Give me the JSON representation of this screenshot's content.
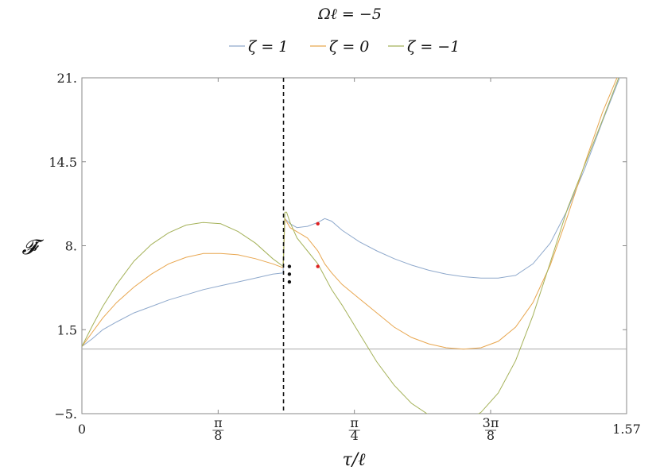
{
  "chart_data": {
    "type": "line",
    "title": "Ωℓ = −5",
    "xlabel": "τ/ℓ",
    "ylabel": "𝓕̇",
    "xlim": [
      0,
      1.57
    ],
    "ylim": [
      -5,
      21
    ],
    "xticks": [
      {
        "value": 0,
        "label": "0"
      },
      {
        "value": 0.3927,
        "label": "π/8",
        "num": "π",
        "den": "8"
      },
      {
        "value": 0.7854,
        "label": "π/4",
        "num": "π",
        "den": "4"
      },
      {
        "value": 1.1781,
        "label": "3π/8",
        "num": "3π",
        "den": "8"
      },
      {
        "value": 1.57,
        "label": "1.57"
      }
    ],
    "yticks": [
      {
        "value": -5,
        "label": "−5."
      },
      {
        "value": 1.5,
        "label": "1.5"
      },
      {
        "value": 8,
        "label": "8."
      },
      {
        "value": 14.5,
        "label": "14.5"
      },
      {
        "value": 21,
        "label": "21."
      }
    ],
    "legend_position": "top-center",
    "colors": {
      "zeta_1": "#8fa9cc",
      "zeta_0": "#e8a64f",
      "zeta_m1": "#a5b25a",
      "dashed": "#111111",
      "zero_line": "#aaaaaa",
      "marker_red": "#e02020",
      "marker_black": "#111111"
    },
    "vertical_line_x": 0.5811,
    "zero_line_y": 0,
    "series": [
      {
        "name": "ζ = 1",
        "color": "#8fa9cc",
        "segments": [
          {
            "x": [
              0,
              0.03,
              0.06,
              0.1,
              0.15,
              0.2,
              0.25,
              0.3,
              0.35,
              0.4,
              0.45,
              0.5,
              0.55,
              0.58
            ],
            "y": [
              0.2,
              0.8,
              1.5,
              2.1,
              2.8,
              3.3,
              3.8,
              4.2,
              4.6,
              4.9,
              5.2,
              5.5,
              5.8,
              5.9
            ]
          },
          {
            "x": [
              0.585,
              0.6,
              0.62,
              0.65,
              0.68,
              0.7,
              0.72,
              0.75,
              0.8,
              0.85,
              0.9,
              0.95,
              1.0,
              1.05,
              1.1,
              1.15,
              1.2,
              1.25,
              1.3,
              1.35,
              1.4,
              1.45,
              1.5,
              1.55,
              1.57
            ],
            "y": [
              10.1,
              9.7,
              9.4,
              9.5,
              9.8,
              10.1,
              9.9,
              9.2,
              8.3,
              7.6,
              7.0,
              6.5,
              6.1,
              5.8,
              5.6,
              5.5,
              5.5,
              5.7,
              6.6,
              8.2,
              10.8,
              14.0,
              17.6,
              21.0,
              21.5
            ]
          }
        ]
      },
      {
        "name": "ζ = 0",
        "color": "#e8a64f",
        "segments": [
          {
            "x": [
              0,
              0.03,
              0.06,
              0.1,
              0.15,
              0.2,
              0.25,
              0.3,
              0.35,
              0.4,
              0.45,
              0.5,
              0.55,
              0.58
            ],
            "y": [
              0.2,
              1.3,
              2.4,
              3.6,
              4.8,
              5.8,
              6.6,
              7.1,
              7.4,
              7.4,
              7.3,
              7.0,
              6.6,
              6.3
            ]
          },
          {
            "x": [
              0.585,
              0.6,
              0.65,
              0.68,
              0.7,
              0.72,
              0.75,
              0.8,
              0.85,
              0.9,
              0.95,
              1.0,
              1.05,
              1.1,
              1.15,
              1.2,
              1.25,
              1.3,
              1.35,
              1.4,
              1.45,
              1.5,
              1.55,
              1.57
            ],
            "y": [
              10.1,
              9.4,
              8.6,
              7.6,
              6.6,
              5.9,
              5.0,
              3.9,
              2.8,
              1.7,
              0.9,
              0.4,
              0.1,
              0.0,
              0.1,
              0.6,
              1.7,
              3.6,
              6.5,
              10.3,
              14.4,
              18.3,
              21.5,
              22.0
            ]
          }
        ]
      },
      {
        "name": "ζ = −1",
        "color": "#a5b25a",
        "segments": [
          {
            "x": [
              0,
              0.03,
              0.06,
              0.1,
              0.15,
              0.2,
              0.25,
              0.3,
              0.35,
              0.4,
              0.45,
              0.5,
              0.55,
              0.58
            ],
            "y": [
              0.2,
              1.8,
              3.3,
              5.0,
              6.8,
              8.1,
              9.0,
              9.6,
              9.8,
              9.7,
              9.1,
              8.2,
              7.0,
              6.4
            ]
          },
          {
            "x": [
              0.585,
              0.59,
              0.6,
              0.62,
              0.65,
              0.68,
              0.7,
              0.72,
              0.75,
              0.8,
              0.85,
              0.9,
              0.95,
              1.0,
              1.05,
              1.1,
              1.15,
              1.2,
              1.25,
              1.3,
              1.35,
              1.4,
              1.45,
              1.5,
              1.55,
              1.57
            ],
            "y": [
              10.6,
              10.6,
              9.8,
              8.6,
              7.6,
              6.6,
              5.6,
              4.6,
              3.4,
              1.2,
              -1.0,
              -2.8,
              -4.2,
              -5.1,
              -5.6,
              -5.6,
              -4.9,
              -3.4,
              -0.9,
              2.6,
              6.7,
              10.9,
              14.3,
              17.7,
              21.2,
              22.0
            ]
          }
        ]
      }
    ],
    "markers": [
      {
        "x": 0.598,
        "y": 5.2,
        "color": "#111111"
      },
      {
        "x": 0.598,
        "y": 5.8,
        "color": "#111111"
      },
      {
        "x": 0.598,
        "y": 6.4,
        "color": "#111111"
      },
      {
        "x": 0.68,
        "y": 9.7,
        "color": "#e02020"
      },
      {
        "x": 0.68,
        "y": 6.4,
        "color": "#e02020"
      }
    ]
  }
}
